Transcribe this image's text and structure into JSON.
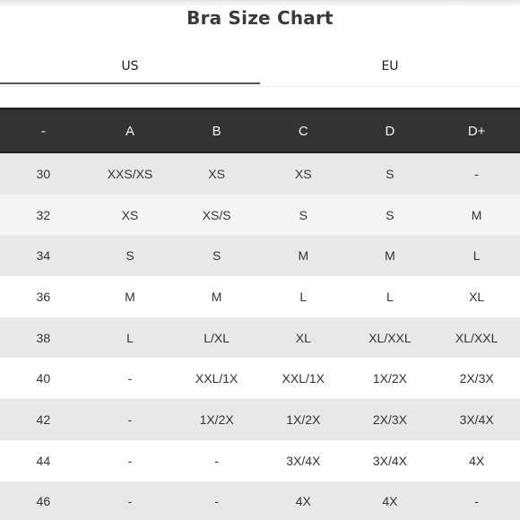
{
  "title": "Bra Size Chart",
  "tabs": [
    {
      "label": "US",
      "active": true
    },
    {
      "label": "EU",
      "active": false
    }
  ],
  "table": {
    "headers": [
      "-",
      "A",
      "B",
      "C",
      "D",
      "D+"
    ],
    "rows": [
      [
        "30",
        "XXS/XS",
        "XS",
        "XS",
        "S",
        "-"
      ],
      [
        "32",
        "XS",
        "XS/S",
        "S",
        "S",
        "M"
      ],
      [
        "34",
        "S",
        "S",
        "M",
        "M",
        "L"
      ],
      [
        "36",
        "M",
        "M",
        "L",
        "L",
        "XL"
      ],
      [
        "38",
        "L",
        "L/XL",
        "XL",
        "XL/XXL",
        "XL/XXL"
      ],
      [
        "40",
        "-",
        "XXL/1X",
        "XXL/1X",
        "1X/2X",
        "2X/3X"
      ],
      [
        "42",
        "-",
        "1X/2X",
        "1X/2X",
        "2X/3X",
        "3X/4X"
      ],
      [
        "44",
        "-",
        "-",
        "3X/4X",
        "3X/4X",
        "4X"
      ],
      [
        "46",
        "-",
        "-",
        "4X",
        "4X",
        "-"
      ]
    ]
  },
  "colors": {
    "header_bg": "#333333",
    "row_gray": "#e8e8e8",
    "row_white": "#ffffff"
  }
}
